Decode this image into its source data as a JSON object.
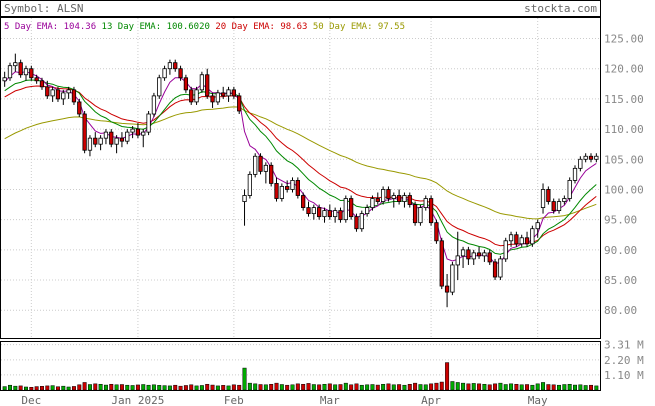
{
  "header": {
    "symbol_label": "Symbol: ALSN",
    "brand": "stockta.com"
  },
  "legend": [
    {
      "label": "5 Day EMA:",
      "value": "104.36",
      "color": "#990099"
    },
    {
      "label": "13 Day EMA:",
      "value": "100.6020",
      "color": "#008800"
    },
    {
      "label": "20 Day EMA:",
      "value": "98.63",
      "color": "#cc0000"
    },
    {
      "label": "50 Day EMA:",
      "value": "97.55",
      "color": "#999900"
    }
  ],
  "chart_data": {
    "type": "candlestick",
    "symbol": "ALSN",
    "y_ticks": [
      "125.00",
      "120.00",
      "115.00",
      "110.00",
      "105.00",
      "100.00",
      "95.00",
      "90.00",
      "85.00",
      "80.00"
    ],
    "ylim": [
      75.4,
      128.4
    ],
    "volume_ticks": [
      "3.31 M",
      "2.20 M",
      "1.10 M"
    ],
    "volume_max": 3.5,
    "x_labels": [
      {
        "label": "Dec",
        "index": 5
      },
      {
        "label": "Jan 2025",
        "index": 25
      },
      {
        "label": "Feb",
        "index": 43
      },
      {
        "label": "Mar",
        "index": 61
      },
      {
        "label": "Apr",
        "index": 80
      },
      {
        "label": "May",
        "index": 100
      }
    ],
    "colors": {
      "up": "#00aa00",
      "down": "#cc0000",
      "grid": "#cccccc"
    },
    "candles": [
      [
        118,
        119.5,
        117,
        118.5
      ],
      [
        118.5,
        121,
        118,
        120.5
      ],
      [
        120.5,
        122.5,
        119.5,
        121
      ],
      [
        121,
        121.5,
        118.5,
        119
      ],
      [
        119,
        120.5,
        118,
        120
      ],
      [
        120,
        120.5,
        118,
        118.5
      ],
      [
        118.5,
        119,
        117.5,
        118
      ],
      [
        118,
        118.5,
        116.5,
        117
      ],
      [
        117,
        118,
        115,
        115.5
      ],
      [
        115.5,
        117,
        114.5,
        116.5
      ],
      [
        116.5,
        117,
        114.5,
        115
      ],
      [
        115,
        116.5,
        114,
        116
      ],
      [
        116,
        117,
        115,
        116.5
      ],
      [
        116.5,
        117,
        114,
        114.5
      ],
      [
        114.5,
        115,
        112,
        112.5
      ],
      [
        112.5,
        113,
        106,
        106.5
      ],
      [
        106.5,
        109,
        105.5,
        108.5
      ],
      [
        108.5,
        109.5,
        107,
        107.5
      ],
      [
        107.5,
        109,
        106.5,
        108.5
      ],
      [
        108.5,
        110,
        107.5,
        109.5
      ],
      [
        109.5,
        110,
        107,
        107.5
      ],
      [
        107.5,
        109,
        106,
        108.5
      ],
      [
        108.5,
        109.5,
        107,
        108
      ],
      [
        108,
        110,
        107.5,
        109.5
      ],
      [
        109.5,
        110.5,
        108.5,
        110
      ],
      [
        110,
        111,
        108.5,
        109
      ],
      [
        109,
        110,
        107,
        109.5
      ],
      [
        109.5,
        113,
        109,
        112.5
      ],
      [
        112.5,
        116,
        112,
        115.5
      ],
      [
        115.5,
        119,
        115,
        118.5
      ],
      [
        118.5,
        120.5,
        118,
        120
      ],
      [
        120,
        121.5,
        119,
        121
      ],
      [
        121,
        121.5,
        119.5,
        120
      ],
      [
        120,
        120.5,
        118,
        118.5
      ],
      [
        118.5,
        119,
        116,
        116.5
      ],
      [
        116.5,
        117,
        114,
        114.5
      ],
      [
        114.5,
        117,
        114,
        116.5
      ],
      [
        116.5,
        119.5,
        116,
        119
      ],
      [
        119,
        120,
        115,
        115.5
      ],
      [
        115.5,
        116,
        113.5,
        114.5
      ],
      [
        114.5,
        116.5,
        114,
        116
      ],
      [
        116,
        117,
        115,
        115.5
      ],
      [
        115.5,
        117,
        114.5,
        116.5
      ],
      [
        116.5,
        117,
        115,
        115.5
      ],
      [
        115.5,
        116,
        112.5,
        113
      ],
      [
        98,
        100,
        94,
        99
      ],
      [
        99,
        103,
        98.5,
        102.5
      ],
      [
        102.5,
        106,
        102,
        105.5
      ],
      [
        105.5,
        106,
        102.5,
        103
      ],
      [
        103,
        104.5,
        101,
        104
      ],
      [
        104,
        104.5,
        100.5,
        101
      ],
      [
        101,
        102,
        98,
        98.5
      ],
      [
        98.5,
        101,
        98,
        100.5
      ],
      [
        100.5,
        101.5,
        99.5,
        100
      ],
      [
        100,
        102,
        99.5,
        101.5
      ],
      [
        101.5,
        102,
        98.5,
        99
      ],
      [
        99,
        99.5,
        96.5,
        97
      ],
      [
        97,
        98,
        95.5,
        96
      ],
      [
        96,
        97.5,
        95,
        97
      ],
      [
        97,
        97.5,
        95,
        95.5
      ],
      [
        95.5,
        97,
        94.5,
        96.5
      ],
      [
        96.5,
        97.5,
        95,
        95.5
      ],
      [
        95.5,
        97,
        94.5,
        96.5
      ],
      [
        96.5,
        97,
        94.5,
        95
      ],
      [
        95,
        99,
        94.5,
        98.5
      ],
      [
        98.5,
        99,
        95,
        95.5
      ],
      [
        95.5,
        96,
        93,
        93.5
      ],
      [
        93.5,
        96.5,
        93,
        96
      ],
      [
        96,
        97.5,
        95.5,
        97
      ],
      [
        97,
        99,
        96.5,
        98.5
      ],
      [
        98.5,
        99.5,
        97.5,
        98
      ],
      [
        98,
        100.5,
        97.5,
        100
      ],
      [
        100,
        100.5,
        98,
        98.5
      ],
      [
        98.5,
        99.5,
        97,
        99
      ],
      [
        99,
        100,
        97.5,
        98
      ],
      [
        98,
        99.5,
        97,
        99
      ],
      [
        99,
        99.5,
        97,
        97.5
      ],
      [
        97.5,
        98,
        94,
        94.5
      ],
      [
        94.5,
        97.5,
        94,
        97
      ],
      [
        97,
        99,
        96.5,
        98.5
      ],
      [
        98.5,
        99,
        94,
        94.5
      ],
      [
        94.5,
        95,
        91,
        91.5
      ],
      [
        91.5,
        92,
        83.5,
        84
      ],
      [
        84,
        86,
        80.5,
        83
      ],
      [
        83,
        88,
        82.5,
        87.5
      ],
      [
        87.5,
        93,
        85,
        89
      ],
      [
        89,
        90.5,
        87,
        90
      ],
      [
        90,
        90.5,
        87.5,
        88.5
      ],
      [
        88.5,
        90,
        87.5,
        89.5
      ],
      [
        89.5,
        90.5,
        88.5,
        89
      ],
      [
        89,
        90,
        88,
        89.5
      ],
      [
        89.5,
        90,
        87.5,
        88
      ],
      [
        88,
        88.5,
        85,
        85.5
      ],
      [
        85.5,
        89,
        85,
        88.5
      ],
      [
        88.5,
        92,
        88,
        91.5
      ],
      [
        91.5,
        93,
        90.5,
        92.5
      ],
      [
        92.5,
        93,
        90.5,
        91
      ],
      [
        91,
        92.5,
        90.5,
        92
      ],
      [
        92,
        93,
        90.5,
        91
      ],
      [
        91,
        94,
        90.5,
        93.5
      ],
      [
        93.5,
        95,
        92,
        94.5
      ],
      [
        97,
        101,
        96,
        100
      ],
      [
        100,
        100.5,
        97.5,
        98
      ],
      [
        98,
        98.5,
        96,
        96.5
      ],
      [
        96.5,
        98.5,
        96,
        98
      ],
      [
        98,
        99,
        97.5,
        98.5
      ],
      [
        98.5,
        102,
        98,
        101.5
      ],
      [
        101.5,
        104,
        101,
        103.5
      ],
      [
        103.5,
        105.5,
        103,
        105
      ],
      [
        105,
        106,
        104.5,
        105.5
      ],
      [
        105.5,
        106,
        104.5,
        105
      ],
      [
        105,
        106,
        104.5,
        105.5
      ]
    ],
    "volumes": [
      0.25,
      0.35,
      0.28,
      0.3,
      0.22,
      0.2,
      0.25,
      0.27,
      0.3,
      0.32,
      0.24,
      0.28,
      0.22,
      0.26,
      0.38,
      0.55,
      0.4,
      0.45,
      0.42,
      0.36,
      0.42,
      0.38,
      0.4,
      0.35,
      0.33,
      0.37,
      0.4,
      0.35,
      0.38,
      0.34,
      0.32,
      0.3,
      0.35,
      0.28,
      0.33,
      0.38,
      0.3,
      0.33,
      0.42,
      0.36,
      0.3,
      0.34,
      0.3,
      0.38,
      0.35,
      1.6,
      0.5,
      0.45,
      0.4,
      0.38,
      0.42,
      0.5,
      0.4,
      0.35,
      0.38,
      0.45,
      0.42,
      0.48,
      0.4,
      0.38,
      0.42,
      0.45,
      0.38,
      0.4,
      0.5,
      0.38,
      0.45,
      0.35,
      0.38,
      0.4,
      0.36,
      0.42,
      0.45,
      0.38,
      0.4,
      0.35,
      0.42,
      0.5,
      0.4,
      0.38,
      0.45,
      0.5,
      0.58,
      2.0,
      0.62,
      0.55,
      0.5,
      0.45,
      0.48,
      0.45,
      0.42,
      0.38,
      0.45,
      0.5,
      0.4,
      0.45,
      0.42,
      0.38,
      0.4,
      0.35,
      0.45,
      0.55,
      0.4,
      0.38,
      0.35,
      0.4,
      0.42,
      0.36,
      0.38,
      0.33,
      0.35,
      0.3
    ]
  }
}
